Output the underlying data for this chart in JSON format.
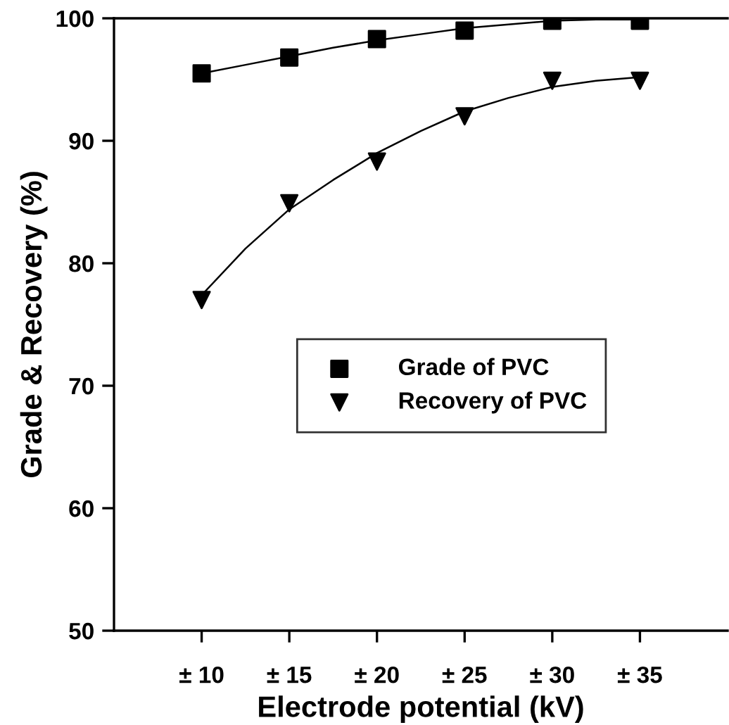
{
  "chart_data": {
    "type": "scatter",
    "xlabel": "Electrode potential (kV)",
    "ylabel": "Grade & Recovery (%)",
    "xlim": [
      5,
      40
    ],
    "xticks": [
      {
        "value": 10,
        "label": "± 10"
      },
      {
        "value": 15,
        "label": "± 15"
      },
      {
        "value": 20,
        "label": "± 20"
      },
      {
        "value": 25,
        "label": "± 25"
      },
      {
        "value": 30,
        "label": "± 30"
      },
      {
        "value": 35,
        "label": "± 35"
      }
    ],
    "ylim": [
      50,
      100
    ],
    "yticks": [
      50,
      60,
      70,
      80,
      90,
      100
    ],
    "grid": false,
    "legend": "center",
    "series": [
      {
        "name": "Grade of PVC",
        "marker": "square",
        "color": "#000000",
        "x": [
          10,
          15,
          20,
          25,
          30,
          35
        ],
        "values": [
          95.5,
          96.8,
          98.3,
          99.0,
          99.8,
          99.8
        ]
      },
      {
        "name": "Recovery of PVC",
        "marker": "triangle",
        "color": "#000000",
        "x": [
          10,
          15,
          20,
          25,
          30,
          35
        ],
        "values": [
          77.0,
          84.9,
          88.3,
          92.0,
          94.9,
          94.9
        ]
      },
      {
        "type": "line",
        "marker": "none",
        "line_style": "solid",
        "color": "#000000",
        "x": [
          10,
          12.5,
          15,
          17.5,
          20,
          22.5,
          25,
          27.5,
          30,
          32.5,
          35
        ],
        "values": [
          95.5,
          96.2,
          96.9,
          97.6,
          98.2,
          98.7,
          99.2,
          99.5,
          99.8,
          99.9,
          99.9
        ]
      },
      {
        "type": "line",
        "marker": "none",
        "line_style": "solid",
        "color": "#000000",
        "x": [
          10,
          12.5,
          15,
          17.5,
          20,
          22.5,
          25,
          27.5,
          30,
          32.5,
          35
        ],
        "values": [
          77.4,
          81.2,
          84.4,
          86.8,
          89.0,
          90.8,
          92.4,
          93.5,
          94.4,
          94.9,
          95.2
        ]
      }
    ]
  }
}
